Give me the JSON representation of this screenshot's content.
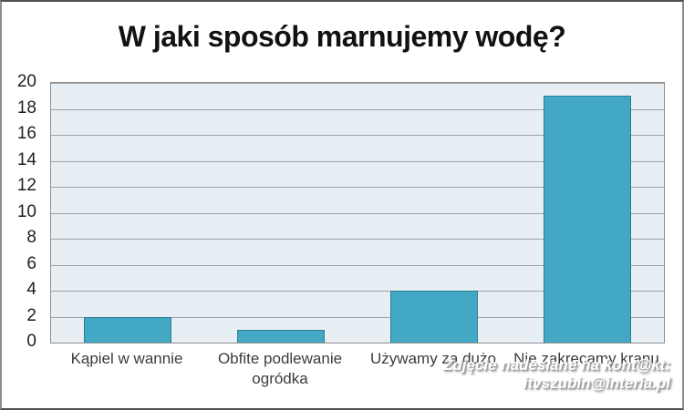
{
  "chart_data": {
    "type": "bar",
    "title": "W jaki sposób marnujemy wodę?",
    "categories": [
      "Kąpiel w wannie",
      "Obfite podlewanie ogródka",
      "Używamy za dużo",
      "Nie zakręcamy kranu"
    ],
    "values": [
      2,
      1,
      4,
      19
    ],
    "xlabel": "",
    "ylabel": "",
    "ylim": [
      0,
      20
    ],
    "ytick_step": 2,
    "grid": true,
    "legend": "none",
    "bar_color": "#42a8c3",
    "bar_border_color": "#2e7d96",
    "plot_background": "#e8eff4",
    "gridline_color": "#a2a2a2",
    "outer_background": "#ffffff"
  },
  "watermark": {
    "line1": "Zdjęcie nadesłane na kont@kt:",
    "line2": "itvszubin@interia.pl",
    "text_color": "#ffffff"
  }
}
